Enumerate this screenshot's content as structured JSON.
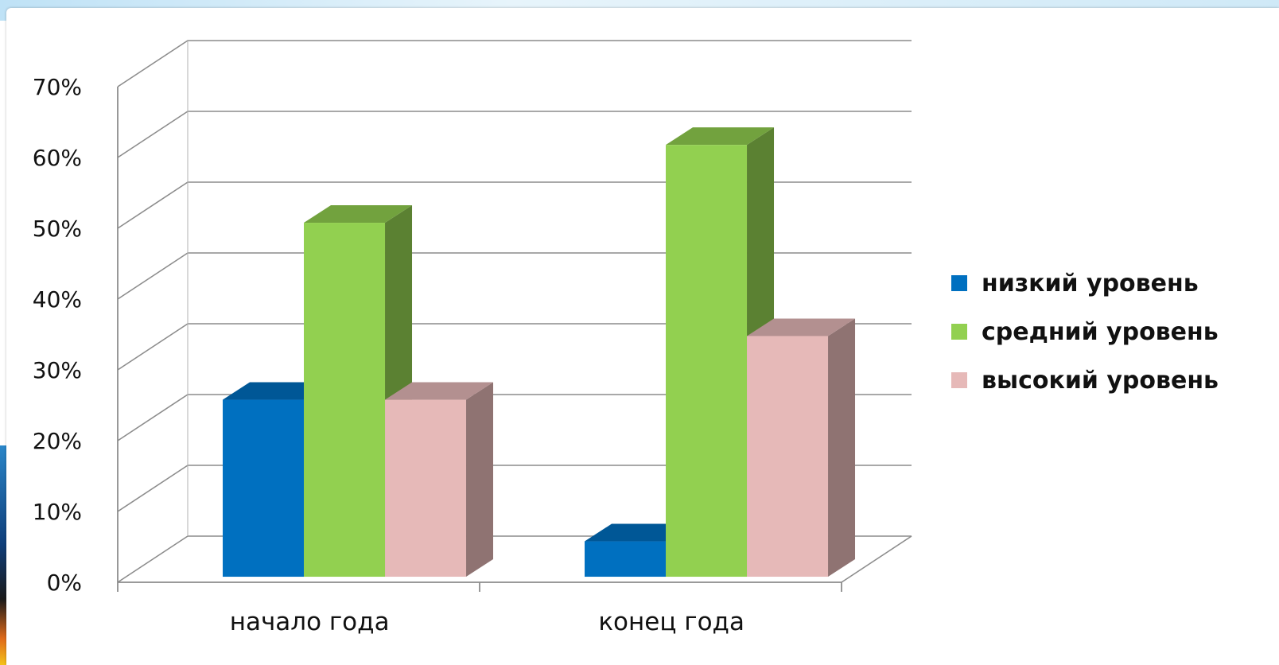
{
  "chart_data": {
    "type": "bar",
    "title": "",
    "xlabel": "",
    "ylabel": "",
    "categories": [
      "начало года",
      "конец года"
    ],
    "series": [
      {
        "name": "низкий уровень",
        "values": [
          25,
          5
        ],
        "color": "#0070C0"
      },
      {
        "name": "средний уровень",
        "values": [
          50,
          61
        ],
        "color": "#92D050"
      },
      {
        "name": "высокий уровень",
        "values": [
          25,
          34
        ],
        "color": "#E6B9B8"
      }
    ],
    "ylim": [
      0,
      70
    ],
    "yticks": [
      "0%",
      "10%",
      "20%",
      "30%",
      "40%",
      "50%",
      "60%",
      "70%"
    ],
    "grid": true,
    "legend": "right",
    "style": "3d-clustered-column"
  }
}
